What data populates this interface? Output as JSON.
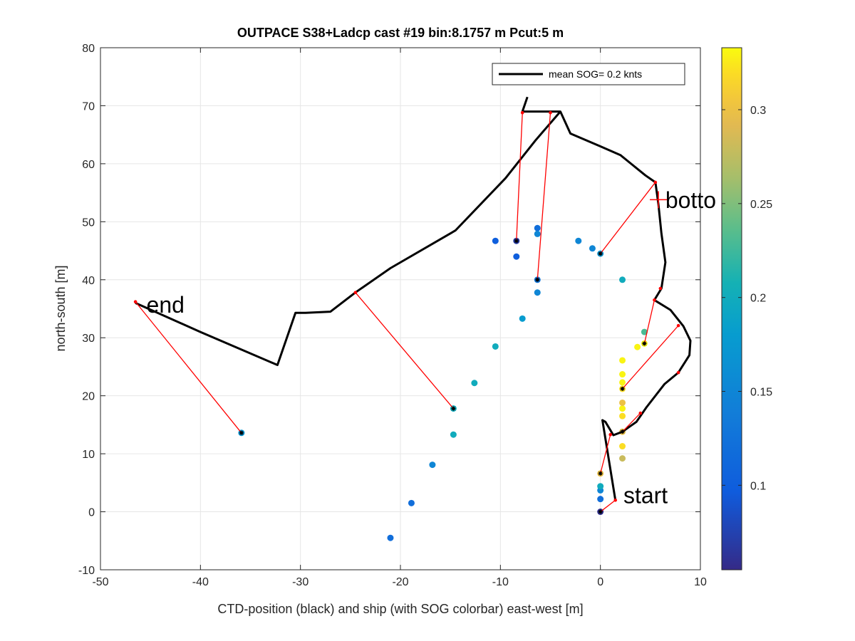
{
  "chart_data": {
    "type": "scatter",
    "title": "OUTPACE S38+Ladcp cast #19 bin:8.1757 m  Pcut:5 m",
    "xlabel": "CTD-position (black) and ship (with SOG colorbar) east-west [m]",
    "ylabel": "north-south [m]",
    "xlim": [
      -50,
      10
    ],
    "ylim": [
      -10,
      80
    ],
    "xticks": [
      -50,
      -40,
      -30,
      -20,
      -10,
      0,
      10
    ],
    "yticks": [
      -10,
      0,
      10,
      20,
      30,
      40,
      50,
      60,
      70,
      80
    ],
    "grid": true,
    "legend": {
      "label": "mean SOG=  0.2 knts",
      "placement": "top-right"
    },
    "colorbar": {
      "range": [
        0.055,
        0.333
      ],
      "ticks": [
        0.1,
        0.15,
        0.2,
        0.25,
        0.3
      ],
      "tick_labels": [
        "0.1",
        "0.15",
        "0.2",
        "0.25",
        "0.3"
      ],
      "colormap": "parula"
    },
    "ctd_track": [
      [
        -7.3,
        71.5
      ],
      [
        -7.8,
        69
      ],
      [
        -5,
        69
      ],
      [
        -4,
        69
      ],
      [
        -3,
        65.2
      ],
      [
        0,
        63
      ],
      [
        2,
        61.5
      ],
      [
        4.5,
        58
      ],
      [
        5.5,
        57
      ],
      [
        5.7,
        53.5
      ],
      [
        6,
        48
      ],
      [
        6.4,
        43
      ],
      [
        6,
        38
      ],
      [
        5.5,
        36.5
      ],
      [
        7,
        34.5
      ],
      [
        8.2,
        32
      ],
      [
        9,
        29
      ],
      [
        8.8,
        26.5
      ],
      [
        7.8,
        24
      ],
      [
        6.5,
        22
      ],
      [
        4.5,
        18
      ],
      [
        3.5,
        15.5
      ],
      [
        2.5,
        14
      ],
      [
        1.3,
        14
      ],
      [
        1,
        15.5
      ],
      [
        0.6,
        15.2
      ],
      [
        1,
        10
      ],
      [
        1.5,
        2
      ],
      [
        0.3,
        15
      ],
      [
        -0.5,
        15
      ],
      [
        1.5,
        2
      ]
    ],
    "ctd_path_main": [
      [
        -7.3,
        71.5
      ],
      [
        -7.8,
        69
      ],
      [
        -5,
        69
      ],
      [
        -4,
        69
      ],
      [
        -3,
        65.2
      ],
      [
        0,
        63
      ],
      [
        2,
        61.5
      ],
      [
        4.5,
        58
      ],
      [
        5.5,
        56.8
      ],
      [
        5.8,
        53
      ],
      [
        6.1,
        48
      ],
      [
        6.5,
        43
      ],
      [
        6.1,
        38.5
      ],
      [
        5.4,
        36.5
      ],
      [
        7,
        34.8
      ],
      [
        8.3,
        32
      ],
      [
        9,
        29.5
      ],
      [
        8.9,
        27
      ],
      [
        7.8,
        24
      ],
      [
        6.4,
        22
      ],
      [
        4.6,
        18
      ],
      [
        3.6,
        15.5
      ],
      [
        2.2,
        13.8
      ],
      [
        1.3,
        13.2
      ],
      [
        0.5,
        15.5
      ],
      [
        0.2,
        15.8
      ],
      [
        1.5,
        2
      ]
    ],
    "ctd_path_west": [
      [
        -4,
        69
      ],
      [
        -6.5,
        64
      ],
      [
        -9.5,
        57.5
      ],
      [
        -14.5,
        48.5
      ],
      [
        -21,
        42
      ],
      [
        -24.5,
        37.8
      ],
      [
        -27,
        34.5
      ],
      [
        -29.5,
        34.3
      ],
      [
        -30.5,
        34.3
      ],
      [
        -32.3,
        25.3
      ],
      [
        -40,
        31
      ],
      [
        -46.5,
        36
      ]
    ],
    "ship_points": [
      {
        "x": 0,
        "y": 0,
        "sog": 0.06
      },
      {
        "x": 0,
        "y": 2.2,
        "sog": 0.12
      },
      {
        "x": 0,
        "y": 3.7,
        "sog": 0.15
      },
      {
        "x": 0,
        "y": 4.4,
        "sog": 0.2
      },
      {
        "x": 0,
        "y": 6.6,
        "sog": 0.3
      },
      {
        "x": 2.2,
        "y": 9.2,
        "sog": 0.28
      },
      {
        "x": 2.2,
        "y": 11.3,
        "sog": 0.32
      },
      {
        "x": 2.2,
        "y": 13.8,
        "sog": 0.3
      },
      {
        "x": 2.2,
        "y": 16.5,
        "sog": 0.32
      },
      {
        "x": 2.2,
        "y": 17.8,
        "sog": 0.33
      },
      {
        "x": 2.2,
        "y": 18.8,
        "sog": 0.3
      },
      {
        "x": 2.2,
        "y": 21.2,
        "sog": 0.32
      },
      {
        "x": 2.2,
        "y": 22.3,
        "sog": 0.33
      },
      {
        "x": 2.2,
        "y": 23.7,
        "sog": 0.33
      },
      {
        "x": 2.2,
        "y": 26.1,
        "sog": 0.33
      },
      {
        "x": 3.7,
        "y": 28.4,
        "sog": 0.33
      },
      {
        "x": 4.4,
        "y": 29.0,
        "sog": 0.33
      },
      {
        "x": 4.4,
        "y": 31.0,
        "sog": 0.23
      },
      {
        "x": 2.2,
        "y": 40.0,
        "sog": 0.2
      },
      {
        "x": 0,
        "y": 44.5,
        "sog": 0.17
      },
      {
        "x": -0.8,
        "y": 45.4,
        "sog": 0.15
      },
      {
        "x": -2.2,
        "y": 46.7,
        "sog": 0.15
      },
      {
        "x": -6.3,
        "y": 48.9,
        "sog": 0.12
      },
      {
        "x": -6.3,
        "y": 47.9,
        "sog": 0.15
      },
      {
        "x": -6.3,
        "y": 40.0,
        "sog": 0.13
      },
      {
        "x": -6.3,
        "y": 37.8,
        "sog": 0.15
      },
      {
        "x": -7.8,
        "y": 33.3,
        "sog": 0.18
      },
      {
        "x": -8.4,
        "y": 46.7,
        "sog": 0.07
      },
      {
        "x": -8.4,
        "y": 44.0,
        "sog": 0.1
      },
      {
        "x": -10.5,
        "y": 46.7,
        "sog": 0.1
      },
      {
        "x": -10.5,
        "y": 28.5,
        "sog": 0.2
      },
      {
        "x": -12.6,
        "y": 22.2,
        "sog": 0.2
      },
      {
        "x": -14.7,
        "y": 17.8,
        "sog": 0.2
      },
      {
        "x": -14.7,
        "y": 13.3,
        "sog": 0.2
      },
      {
        "x": -16.8,
        "y": 8.1,
        "sog": 0.15
      },
      {
        "x": -18.9,
        "y": 1.5,
        "sog": 0.12
      },
      {
        "x": -21.0,
        "y": -4.5,
        "sog": 0.12
      },
      {
        "x": -35.9,
        "y": 13.6,
        "sog": 0.17
      }
    ],
    "ctd_markers": [
      [
        0,
        0
      ],
      [
        0,
        6.6
      ],
      [
        2.2,
        13.8
      ],
      [
        2.2,
        21.2
      ],
      [
        4.4,
        29.0
      ],
      [
        0,
        44.5
      ],
      [
        -6.3,
        40.0
      ],
      [
        -8.4,
        46.7
      ],
      [
        -14.7,
        17.8
      ],
      [
        -35.9,
        13.6
      ]
    ],
    "connectors": [
      [
        [
          0,
          0
        ],
        [
          1.5,
          2
        ]
      ],
      [
        [
          0,
          6.6
        ],
        [
          1.0,
          13.3
        ]
      ],
      [
        [
          2.2,
          13.8
        ],
        [
          4.0,
          17.0
        ]
      ],
      [
        [
          2.2,
          21.2
        ],
        [
          7.8,
          32.1
        ]
      ],
      [
        [
          4.4,
          29.0
        ],
        [
          5.4,
          36.5
        ]
      ],
      [
        [
          0,
          44.5
        ],
        [
          5.5,
          56.8
        ]
      ],
      [
        [
          -6.3,
          40.0
        ],
        [
          -5.0,
          68.8
        ]
      ],
      [
        [
          -8.4,
          46.7
        ],
        [
          -7.8,
          68.8
        ]
      ],
      [
        [
          -14.7,
          17.8
        ],
        [
          -24.5,
          37.8
        ]
      ],
      [
        [
          -35.9,
          13.6
        ],
        [
          -46.5,
          36.2
        ]
      ]
    ],
    "connector_end_markers": [
      [
        1.5,
        2
      ],
      [
        1.0,
        13.3
      ],
      [
        4.0,
        17.0
      ],
      [
        7.8,
        32.1
      ],
      [
        7.8,
        24.0
      ],
      [
        5.4,
        36.5
      ],
      [
        6.0,
        38.5
      ],
      [
        5.5,
        56.8
      ],
      [
        -5.0,
        68.8
      ],
      [
        -7.8,
        68.8
      ],
      [
        -24.5,
        37.8
      ],
      [
        -46.5,
        36.2
      ]
    ],
    "annotations": [
      {
        "text": "start",
        "x": 2.3,
        "y": 1.5
      },
      {
        "text": "end",
        "x": -45.4,
        "y": 34.3
      },
      {
        "text": "botto",
        "x": 6.5,
        "y": 52.4
      }
    ],
    "bottom_marker": {
      "x": 5.8,
      "y": 53.8
    }
  },
  "colors": {
    "ctd_track": "#000000",
    "connector": "#ff0000",
    "grid": "#e6e6e6",
    "axis": "#262626"
  }
}
